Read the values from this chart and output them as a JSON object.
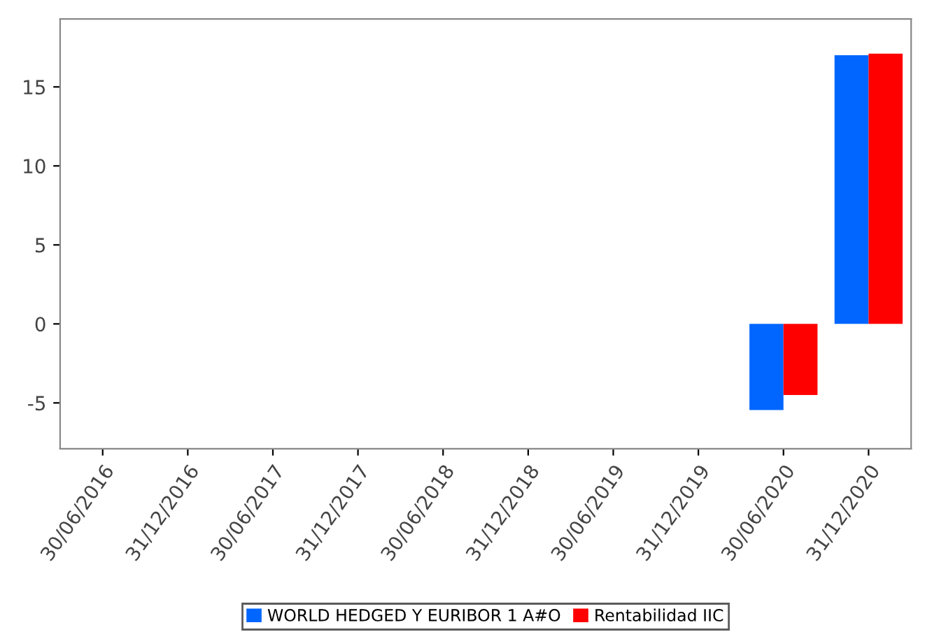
{
  "chart_data": {
    "type": "bar",
    "categories": [
      "30/06/2016",
      "31/12/2016",
      "30/06/2017",
      "31/12/2017",
      "30/06/2018",
      "31/12/2018",
      "30/06/2019",
      "31/12/2019",
      "30/06/2020",
      "31/12/2020"
    ],
    "series": [
      {
        "name": "WORLD HEDGED Y EURIBOR 1 A#O",
        "color": "#0066ff",
        "values": [
          null,
          null,
          null,
          null,
          null,
          null,
          null,
          null,
          -5.45,
          17.0
        ]
      },
      {
        "name": "Rentabilidad IIC",
        "color": "#ff0000",
        "values": [
          null,
          null,
          null,
          null,
          null,
          null,
          null,
          null,
          -4.5,
          17.1
        ]
      }
    ],
    "ylim": [
      -7.9,
      19.3
    ],
    "yticks": [
      -5,
      0,
      5,
      10,
      15
    ],
    "grid": false,
    "legend": "bottom"
  }
}
